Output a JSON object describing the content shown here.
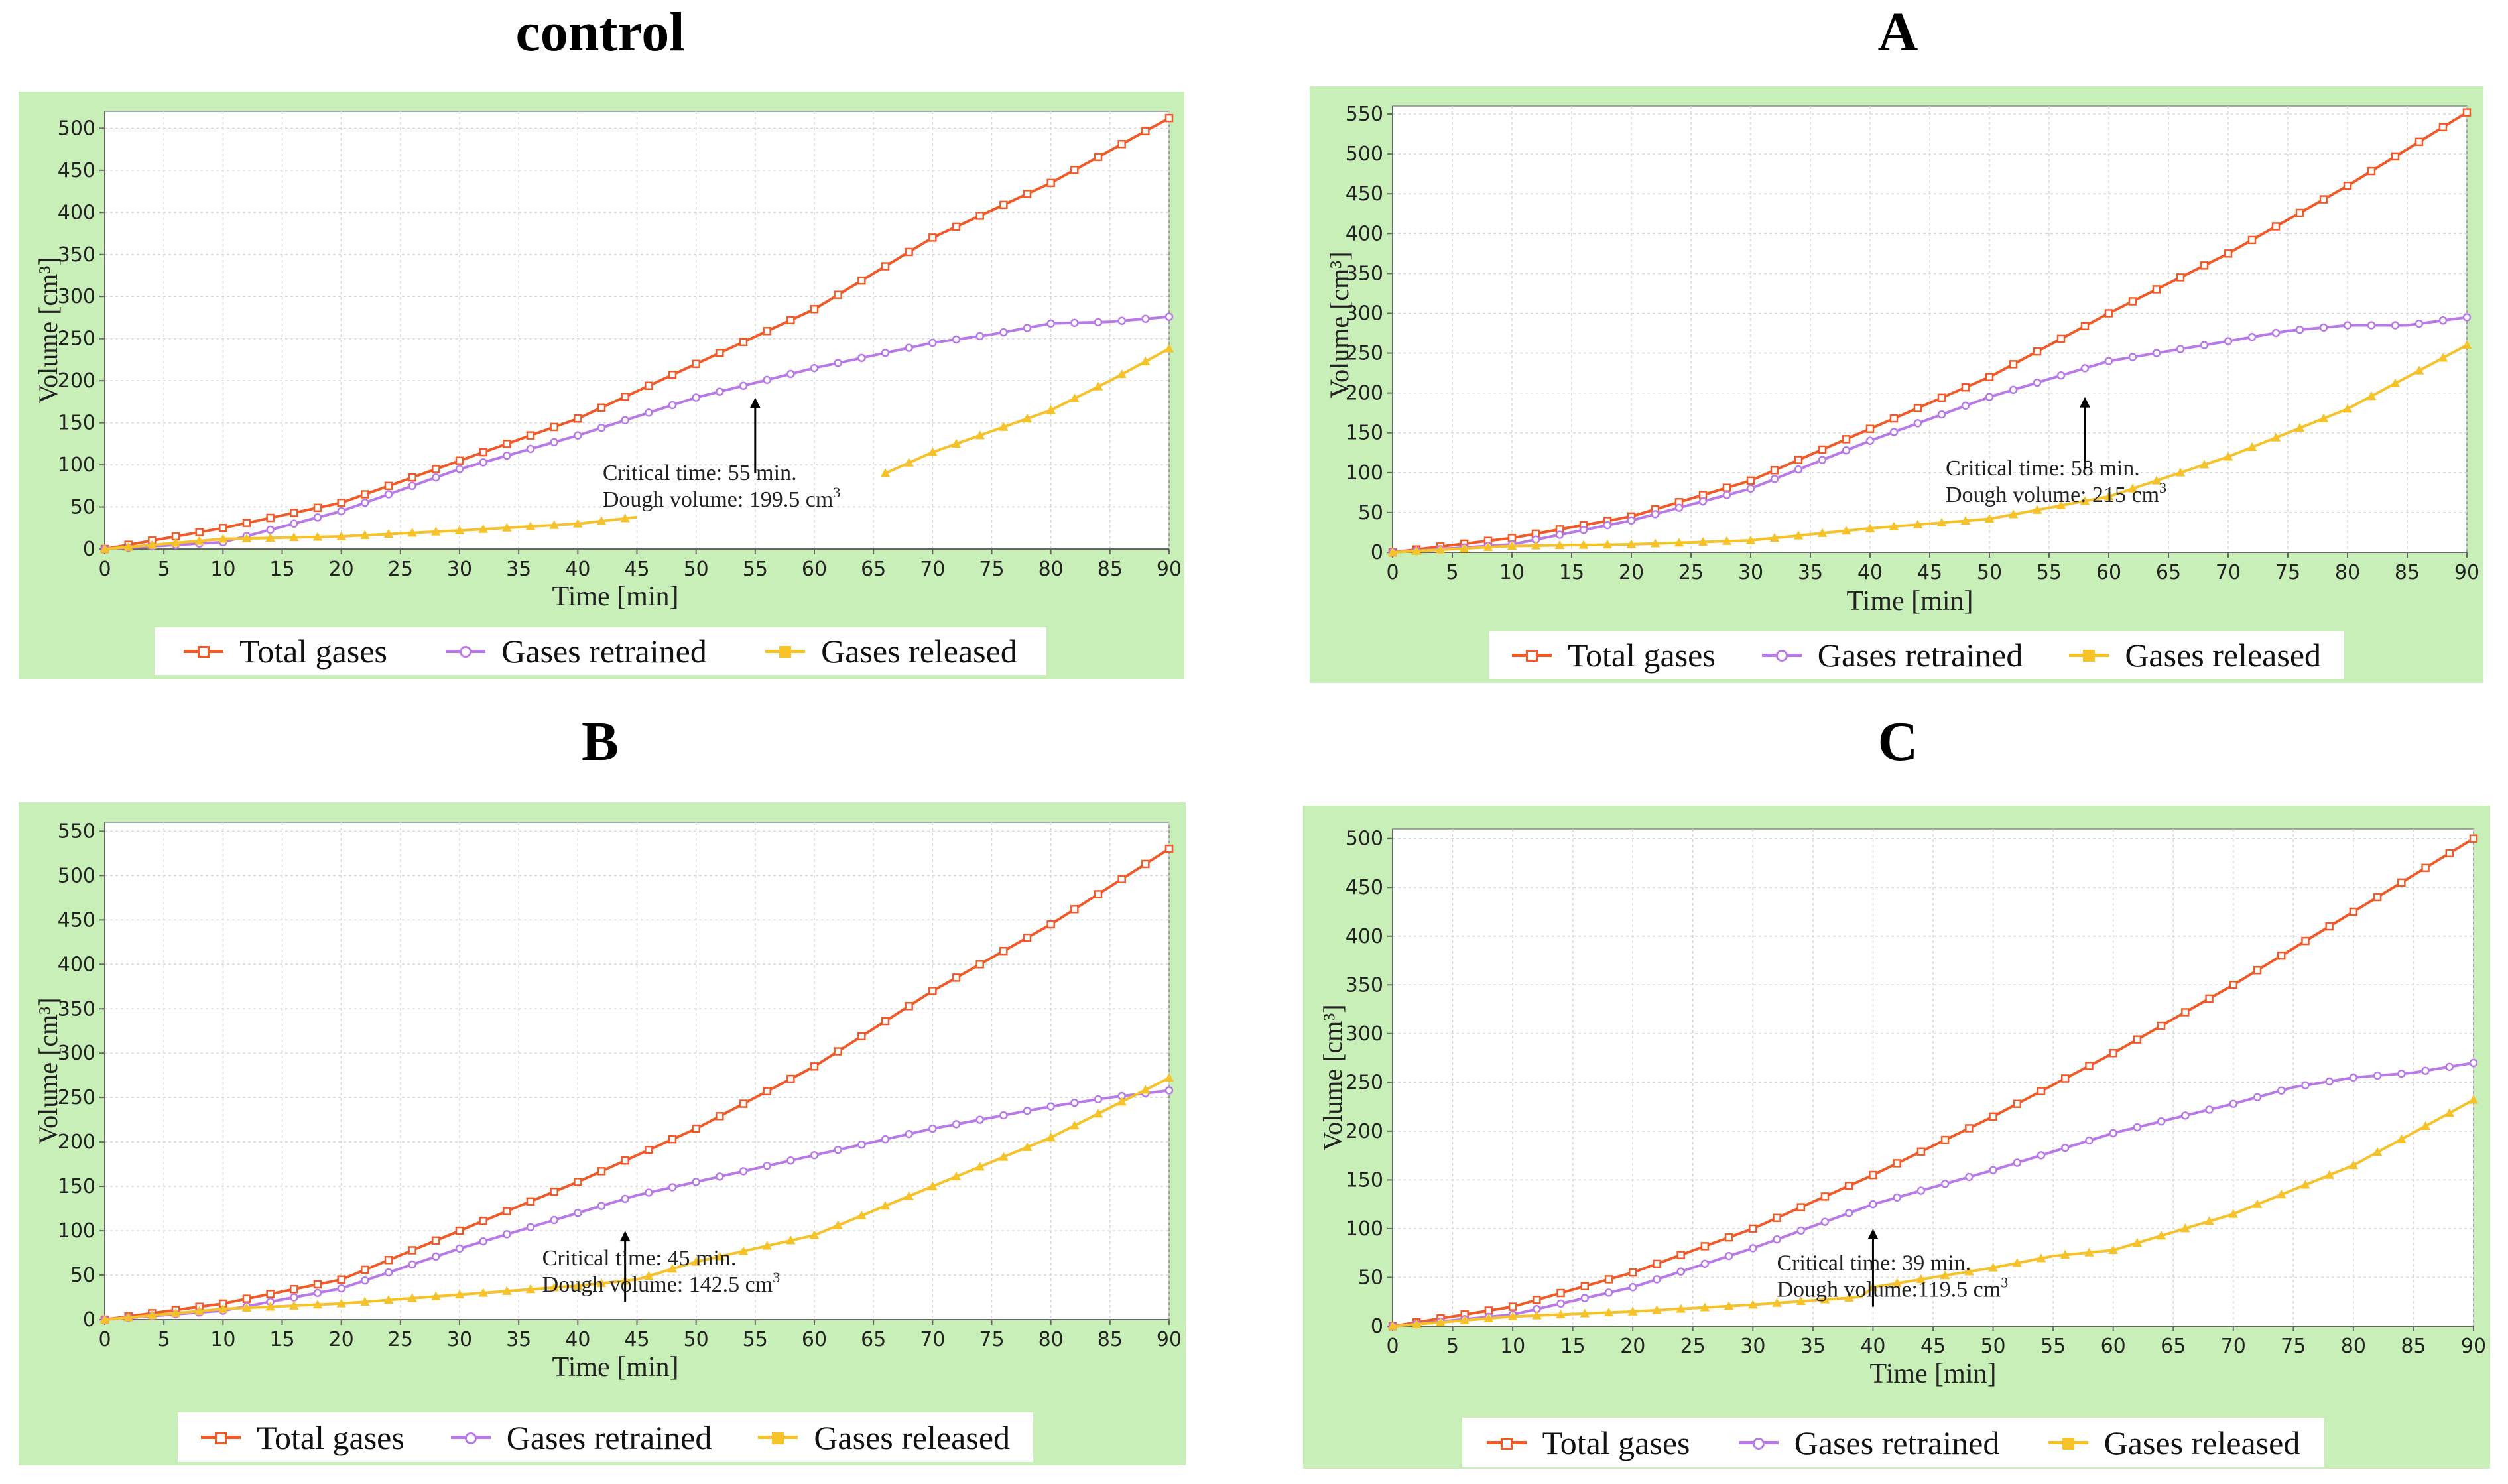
{
  "page": {
    "marker_colors": {
      "total": "#f05a28",
      "retained": "#b77ae6",
      "released": "#f6c22a"
    }
  },
  "chart_data": [
    {
      "id": "control",
      "type": "line",
      "title": "control",
      "xlabel": "Time  [min]",
      "ylabel": "Volume  [cm³]",
      "xlim": [
        0,
        90
      ],
      "ylim": [
        0,
        520
      ],
      "xticks": [
        0,
        5,
        10,
        15,
        20,
        25,
        30,
        35,
        40,
        45,
        50,
        55,
        60,
        65,
        70,
        75,
        80,
        85,
        90
      ],
      "yticks": [
        0,
        50,
        100,
        150,
        200,
        250,
        300,
        350,
        400,
        450,
        500
      ],
      "grid": true,
      "legend_position": "bottom",
      "series": [
        {
          "name": "Total gases",
          "color": "#f05a28",
          "marker": "square",
          "x": [
            0,
            10,
            20,
            30,
            40,
            50,
            60,
            70,
            80,
            90
          ],
          "y": [
            0,
            25,
            55,
            105,
            155,
            220,
            285,
            370,
            435,
            512
          ]
        },
        {
          "name": "Gases retrained",
          "color": "#b77ae6",
          "marker": "circle",
          "x": [
            0,
            10,
            20,
            30,
            40,
            50,
            60,
            70,
            75,
            80,
            85,
            90
          ],
          "y": [
            0,
            8,
            45,
            95,
            135,
            180,
            215,
            245,
            255,
            268,
            270,
            276
          ]
        },
        {
          "name": "Gases released",
          "color": "#f6c22a",
          "marker": "triangle",
          "segments": [
            {
              "x": [
                0,
                10,
                20,
                30,
                40,
                45
              ],
              "y": [
                0,
                12,
                15,
                22,
                30,
                38
              ]
            },
            {
              "x": [
                66,
                70,
                75,
                80,
                85,
                90
              ],
              "y": [
                90,
                115,
                140,
                165,
                200,
                238
              ]
            }
          ]
        }
      ],
      "annotation": {
        "line1": "Critical time: 55 min.",
        "line2": "Dough volume: 199.5 cm",
        "sup": "3",
        "arrow_x": 55,
        "arrow_from_y": 90,
        "arrow_to_y": 180
      }
    },
    {
      "id": "A",
      "type": "line",
      "title": "A",
      "xlabel": "Time  [min]",
      "ylabel": "Volume  [cm³]",
      "xlim": [
        0,
        90
      ],
      "ylim": [
        0,
        560
      ],
      "xticks": [
        0,
        5,
        10,
        15,
        20,
        25,
        30,
        35,
        40,
        45,
        50,
        55,
        60,
        65,
        70,
        75,
        80,
        85,
        90
      ],
      "yticks": [
        0,
        50,
        100,
        150,
        200,
        250,
        300,
        350,
        400,
        450,
        500,
        550
      ],
      "grid": true,
      "legend_position": "bottom",
      "series": [
        {
          "name": "Total gases",
          "color": "#f05a28",
          "marker": "square",
          "x": [
            0,
            10,
            20,
            30,
            40,
            50,
            60,
            70,
            80,
            90
          ],
          "y": [
            0,
            18,
            45,
            90,
            155,
            220,
            300,
            375,
            460,
            552
          ]
        },
        {
          "name": "Gases retrained",
          "color": "#b77ae6",
          "marker": "circle",
          "x": [
            0,
            10,
            20,
            30,
            40,
            50,
            60,
            70,
            75,
            80,
            85,
            90
          ],
          "y": [
            0,
            10,
            40,
            80,
            140,
            195,
            240,
            265,
            278,
            285,
            285,
            295
          ]
        },
        {
          "name": "Gases released",
          "color": "#f6c22a",
          "marker": "triangle",
          "segments": [
            {
              "x": [
                0,
                10,
                20,
                30,
                40,
                50,
                60,
                70,
                80,
                90
              ],
              "y": [
                0,
                8,
                10,
                15,
                30,
                42,
                70,
                120,
                180,
                260
              ]
            }
          ]
        }
      ],
      "annotation": {
        "line1": "Critical time: 58 min.",
        "line2": "Dough volume: 215 cm",
        "sup": "3",
        "arrow_x": 58,
        "arrow_from_y": 105,
        "arrow_to_y": 195
      }
    },
    {
      "id": "B",
      "type": "line",
      "title": "B",
      "xlabel": "Time  [min]",
      "ylabel": "Volume  [cm³]",
      "xlim": [
        0,
        90
      ],
      "ylim": [
        0,
        560
      ],
      "xticks": [
        0,
        5,
        10,
        15,
        20,
        25,
        30,
        35,
        40,
        45,
        50,
        55,
        60,
        65,
        70,
        75,
        80,
        85,
        90
      ],
      "yticks": [
        0,
        50,
        100,
        150,
        200,
        250,
        300,
        350,
        400,
        450,
        500,
        550
      ],
      "grid": true,
      "legend_position": "bottom",
      "series": [
        {
          "name": "Total gases",
          "color": "#f05a28",
          "marker": "square",
          "x": [
            0,
            10,
            20,
            30,
            40,
            50,
            60,
            70,
            80,
            90
          ],
          "y": [
            0,
            18,
            45,
            100,
            155,
            215,
            285,
            370,
            445,
            530
          ]
        },
        {
          "name": "Gases retrained",
          "color": "#b77ae6",
          "marker": "circle",
          "x": [
            0,
            10,
            20,
            30,
            40,
            45,
            50,
            60,
            70,
            80,
            85,
            90
          ],
          "y": [
            0,
            10,
            35,
            80,
            120,
            140,
            155,
            185,
            215,
            240,
            250,
            258
          ]
        },
        {
          "name": "Gases released",
          "color": "#f6c22a",
          "marker": "triangle",
          "segments": [
            {
              "x": [
                0,
                10,
                20,
                30,
                40,
                45,
                50,
                60,
                70,
                80,
                90
              ],
              "y": [
                0,
                12,
                18,
                28,
                38,
                45,
                65,
                95,
                150,
                205,
                272
              ]
            }
          ]
        }
      ],
      "annotation": {
        "line1": "Critical time: 45 min.",
        "line2": "Dough volume: 142.5 cm",
        "sup": "3",
        "arrow_x": 44,
        "arrow_from_y": 20,
        "arrow_to_y": 100
      }
    },
    {
      "id": "C",
      "type": "line",
      "title": "C",
      "xlabel": "Time  [min]",
      "ylabel": "Volume  [cm³]",
      "xlim": [
        0,
        90
      ],
      "ylim": [
        0,
        510
      ],
      "xticks": [
        0,
        5,
        10,
        15,
        20,
        25,
        30,
        35,
        40,
        45,
        50,
        55,
        60,
        65,
        70,
        75,
        80,
        85,
        90
      ],
      "yticks": [
        0,
        50,
        100,
        150,
        200,
        250,
        300,
        350,
        400,
        450,
        500
      ],
      "grid": true,
      "legend_position": "bottom",
      "series": [
        {
          "name": "Total gases",
          "color": "#f05a28",
          "marker": "square",
          "x": [
            0,
            10,
            20,
            30,
            40,
            50,
            60,
            70,
            80,
            90
          ],
          "y": [
            0,
            20,
            55,
            100,
            155,
            215,
            280,
            350,
            425,
            500
          ]
        },
        {
          "name": "Gases retrained",
          "color": "#b77ae6",
          "marker": "circle",
          "x": [
            0,
            10,
            20,
            30,
            40,
            50,
            60,
            70,
            75,
            80,
            85,
            90
          ],
          "y": [
            0,
            12,
            40,
            80,
            125,
            160,
            198,
            228,
            245,
            255,
            260,
            270
          ]
        },
        {
          "name": "Gases released",
          "color": "#f6c22a",
          "marker": "triangle",
          "segments": [
            {
              "x": [
                0,
                10,
                20,
                30,
                39,
                40,
                50,
                55,
                60,
                70,
                80,
                90
              ],
              "y": [
                0,
                10,
                15,
                22,
                30,
                40,
                60,
                72,
                78,
                115,
                165,
                232
              ]
            }
          ]
        }
      ],
      "annotation": {
        "line1": "Critical time: 39 min.",
        "line2": "Dough volume:119.5  cm",
        "sup": "3",
        "arrow_x": 40,
        "arrow_from_y": 20,
        "arrow_to_y": 100
      }
    }
  ]
}
